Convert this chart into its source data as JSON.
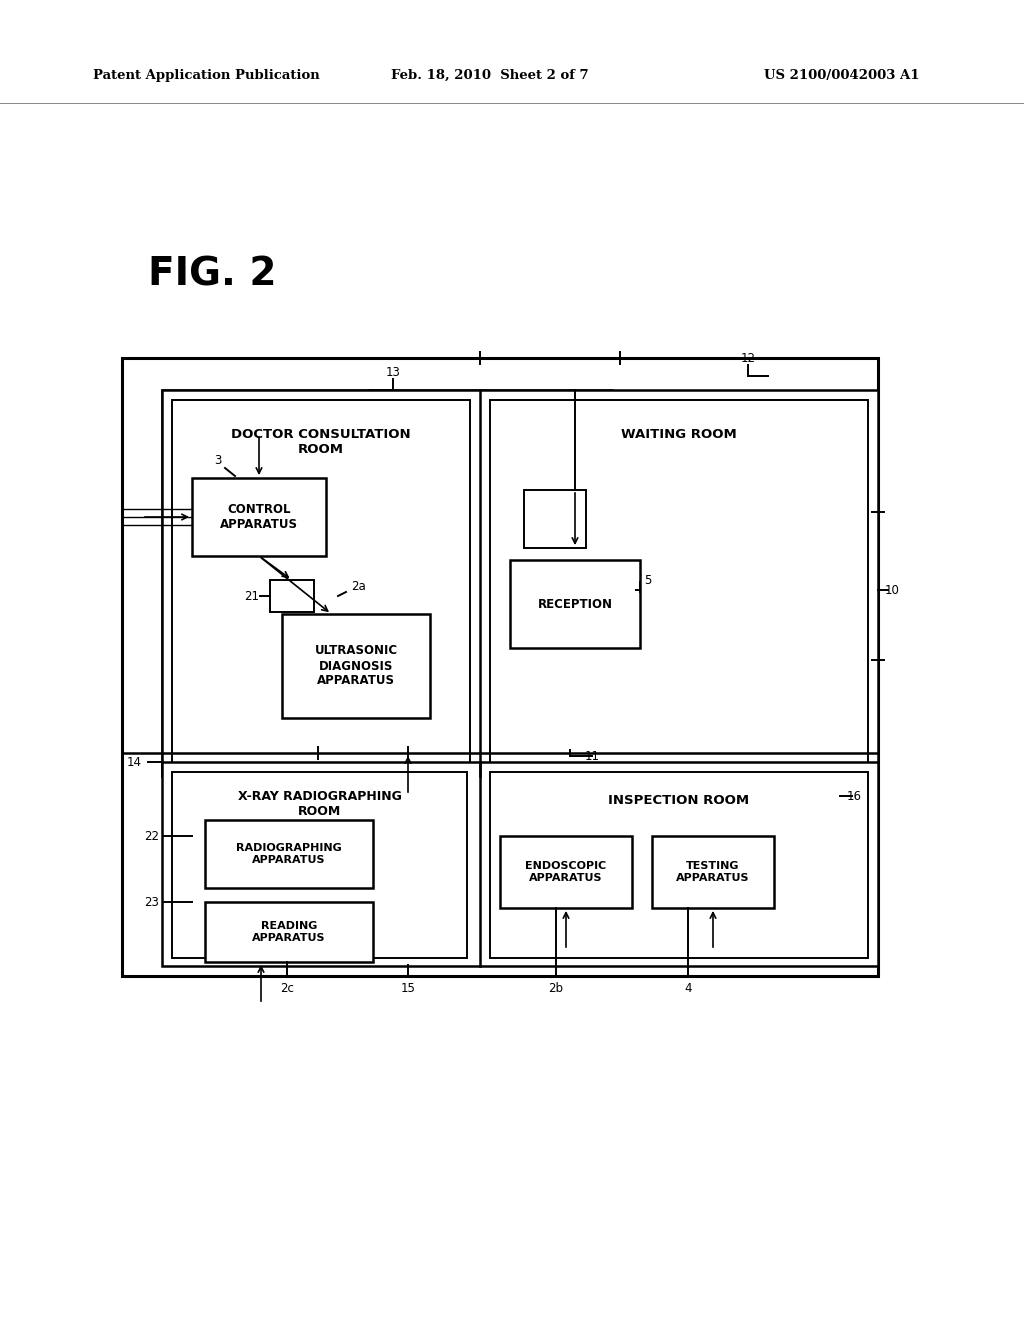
{
  "bg": "#ffffff",
  "hdr1": "Patent Application Publication",
  "hdr2": "Feb. 18, 2010  Sheet 2 of 7",
  "hdr3": "US 2100/0042003 A1",
  "fig_label": "FIG. 2"
}
